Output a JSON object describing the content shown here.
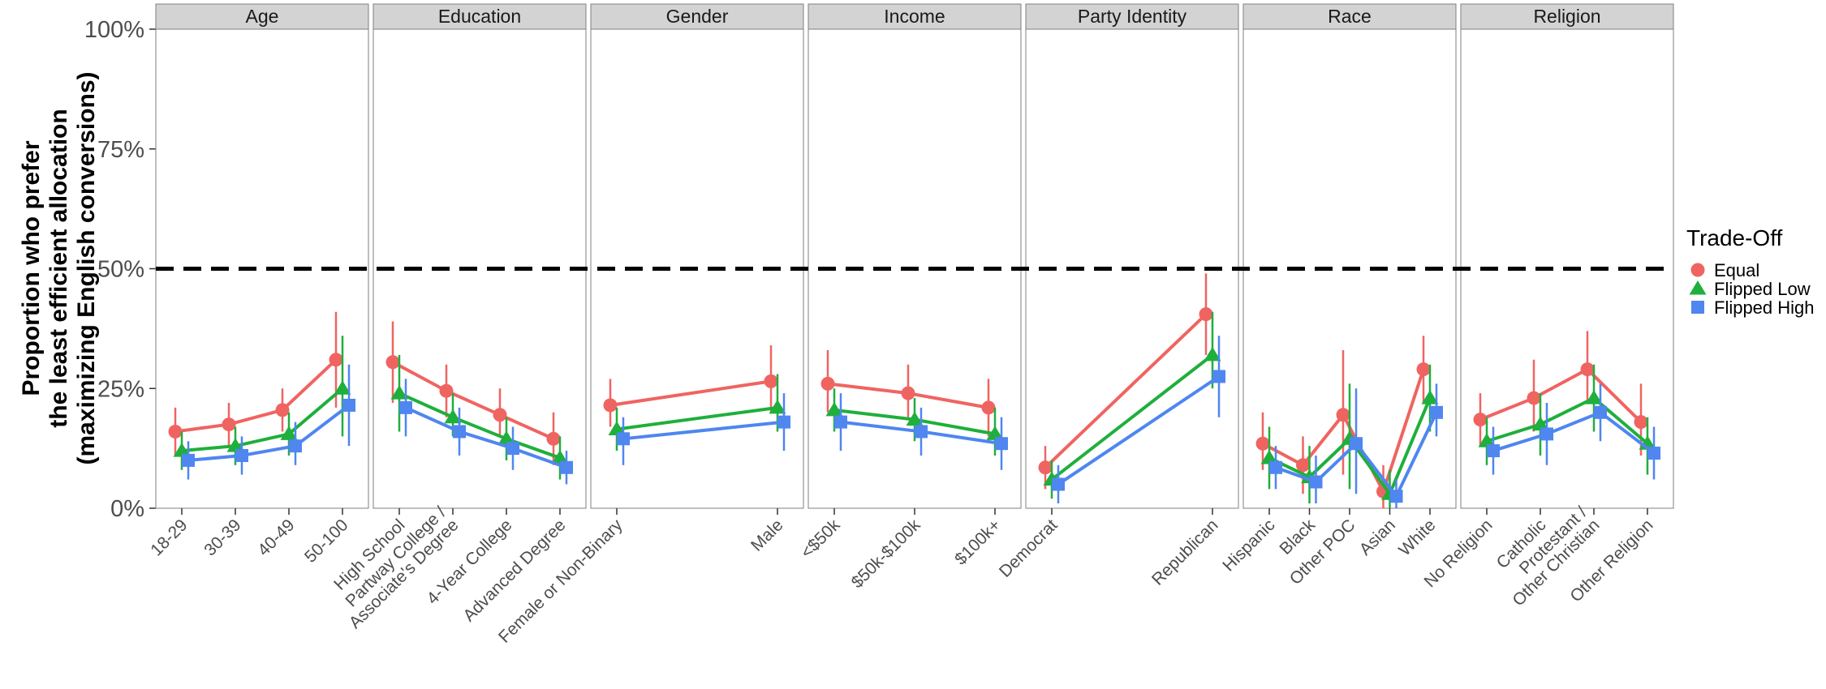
{
  "chart_data": {
    "type": "line",
    "ylabel": [
      "Proportion who prefer",
      "the least efficient allocation",
      "(maximizing English conversions)"
    ],
    "ylim": [
      0,
      100
    ],
    "yticks": [
      {
        "value": 0,
        "label": "0%"
      },
      {
        "value": 25,
        "label": "25%"
      },
      {
        "value": 50,
        "label": "50%"
      },
      {
        "value": 75,
        "label": "75%"
      },
      {
        "value": 100,
        "label": "100%"
      }
    ],
    "reference_line": 50,
    "legend": {
      "title": "Trade-Off",
      "position": "right",
      "entries": [
        {
          "name": "Equal",
          "color": "#ef6461",
          "shape": "circle"
        },
        {
          "name": "Flipped Low",
          "color": "#1faf3c",
          "shape": "triangle"
        },
        {
          "name": "Flipped High",
          "color": "#4f86f0",
          "shape": "square"
        }
      ]
    },
    "panels": [
      {
        "title": "Age",
        "categories": [
          [
            "18-29"
          ],
          [
            "30-39"
          ],
          [
            "40-49"
          ],
          [
            "50-100"
          ]
        ],
        "series": [
          {
            "name": "Equal",
            "values": [
              16,
              17.5,
              20.5,
              31
            ],
            "lo": [
              11,
              13,
              16,
              21
            ],
            "hi": [
              21,
              22,
              25,
              41
            ]
          },
          {
            "name": "Flipped Low",
            "values": [
              12,
              13,
              15.5,
              25
            ],
            "lo": [
              8,
              9,
              11,
              15
            ],
            "hi": [
              16,
              17,
              20,
              36
            ]
          },
          {
            "name": "Flipped High",
            "values": [
              10,
              11,
              13,
              21.5
            ],
            "lo": [
              6,
              7,
              9,
              13
            ],
            "hi": [
              14,
              15,
              18,
              30
            ]
          }
        ]
      },
      {
        "title": "Education",
        "categories": [
          [
            "High School"
          ],
          [
            "Partway College /",
            "Associate's Degree"
          ],
          [
            "4-Year College"
          ],
          [
            "Advanced Degree"
          ]
        ],
        "series": [
          {
            "name": "Equal",
            "values": [
              30.5,
              24.5,
              19.5,
              14.5
            ],
            "lo": [
              22,
              19,
              15,
              9
            ],
            "hi": [
              39,
              30,
              25,
              20
            ]
          },
          {
            "name": "Flipped Low",
            "values": [
              24,
              19,
              14.5,
              10.5
            ],
            "lo": [
              16,
              15,
              10,
              6
            ],
            "hi": [
              32,
              24,
              19,
              15
            ]
          },
          {
            "name": "Flipped High",
            "values": [
              21,
              16,
              12.5,
              8.5
            ],
            "lo": [
              15,
              11,
              8,
              5
            ],
            "hi": [
              27,
              21,
              17,
              12
            ]
          }
        ]
      },
      {
        "title": "Gender",
        "categories": [
          [
            "Female or Non-Binary"
          ],
          [
            "Male"
          ]
        ],
        "series": [
          {
            "name": "Equal",
            "values": [
              21.5,
              26.5
            ],
            "lo": [
              17,
              20
            ],
            "hi": [
              27,
              34
            ]
          },
          {
            "name": "Flipped Low",
            "values": [
              16.5,
              21
            ],
            "lo": [
              12,
              16
            ],
            "hi": [
              21,
              28
            ]
          },
          {
            "name": "Flipped High",
            "values": [
              14.5,
              18
            ],
            "lo": [
              9,
              12
            ],
            "hi": [
              19,
              24
            ]
          }
        ]
      },
      {
        "title": "Income",
        "categories": [
          [
            "<$50k"
          ],
          [
            "$50k-$100k"
          ],
          [
            "$100k+"
          ]
        ],
        "series": [
          {
            "name": "Equal",
            "values": [
              26,
              24,
              21
            ],
            "lo": [
              20,
              19,
              15
            ],
            "hi": [
              33,
              30,
              27
            ]
          },
          {
            "name": "Flipped Low",
            "values": [
              20.5,
              18.5,
              15.5
            ],
            "lo": [
              16,
              14,
              11
            ],
            "hi": [
              25,
              23,
              21
            ]
          },
          {
            "name": "Flipped High",
            "values": [
              18,
              16,
              13.5
            ],
            "lo": [
              12,
              11,
              8
            ],
            "hi": [
              24,
              21,
              19
            ]
          }
        ]
      },
      {
        "title": "Party Identity",
        "categories": [
          [
            "Democrat"
          ],
          [
            "Republican"
          ]
        ],
        "series": [
          {
            "name": "Equal",
            "values": [
              8.5,
              40.5
            ],
            "lo": [
              4,
              32
            ],
            "hi": [
              13,
              49
            ]
          },
          {
            "name": "Flipped Low",
            "values": [
              6,
              32
            ],
            "lo": [
              2,
              25
            ],
            "hi": [
              10,
              41
            ]
          },
          {
            "name": "Flipped High",
            "values": [
              5,
              27.5
            ],
            "lo": [
              1,
              19
            ],
            "hi": [
              9,
              36
            ]
          }
        ]
      },
      {
        "title": "Race",
        "categories": [
          [
            "Hispanic"
          ],
          [
            "Black"
          ],
          [
            "Other POC"
          ],
          [
            "Asian"
          ],
          [
            "White"
          ]
        ],
        "series": [
          {
            "name": "Equal",
            "values": [
              13.5,
              9,
              19.5,
              3.5,
              29
            ],
            "lo": [
              8,
              3,
              7,
              0,
              22
            ],
            "hi": [
              20,
              15,
              33,
              9,
              36
            ]
          },
          {
            "name": "Flipped Low",
            "values": [
              10.5,
              6.5,
              14.5,
              3,
              23
            ],
            "lo": [
              4,
              1,
              4,
              0,
              16
            ],
            "hi": [
              17,
              13,
              26,
              8,
              30
            ]
          },
          {
            "name": "Flipped High",
            "values": [
              8.5,
              5.5,
              13.5,
              2.5,
              20
            ],
            "lo": [
              4,
              1,
              3,
              0,
              15
            ],
            "hi": [
              13,
              11,
              25,
              6,
              26
            ]
          }
        ]
      },
      {
        "title": "Religion",
        "categories": [
          [
            "No Religion"
          ],
          [
            "Catholic"
          ],
          [
            "Protestant /",
            "Other Christian"
          ],
          [
            "Other Religion"
          ]
        ],
        "series": [
          {
            "name": "Equal",
            "values": [
              18.5,
              23,
              29,
              18
            ],
            "lo": [
              13,
              16,
              22,
              11
            ],
            "hi": [
              24,
              31,
              37,
              26
            ]
          },
          {
            "name": "Flipped Low",
            "values": [
              14,
              17.5,
              23,
              13.5
            ],
            "lo": [
              9,
              11,
              16,
              7
            ],
            "hi": [
              19,
              24,
              30,
              19
            ]
          },
          {
            "name": "Flipped High",
            "values": [
              12,
              15.5,
              20,
              11.5
            ],
            "lo": [
              7,
              9,
              14,
              6
            ],
            "hi": [
              17,
              22,
              26,
              17
            ]
          }
        ]
      }
    ]
  }
}
